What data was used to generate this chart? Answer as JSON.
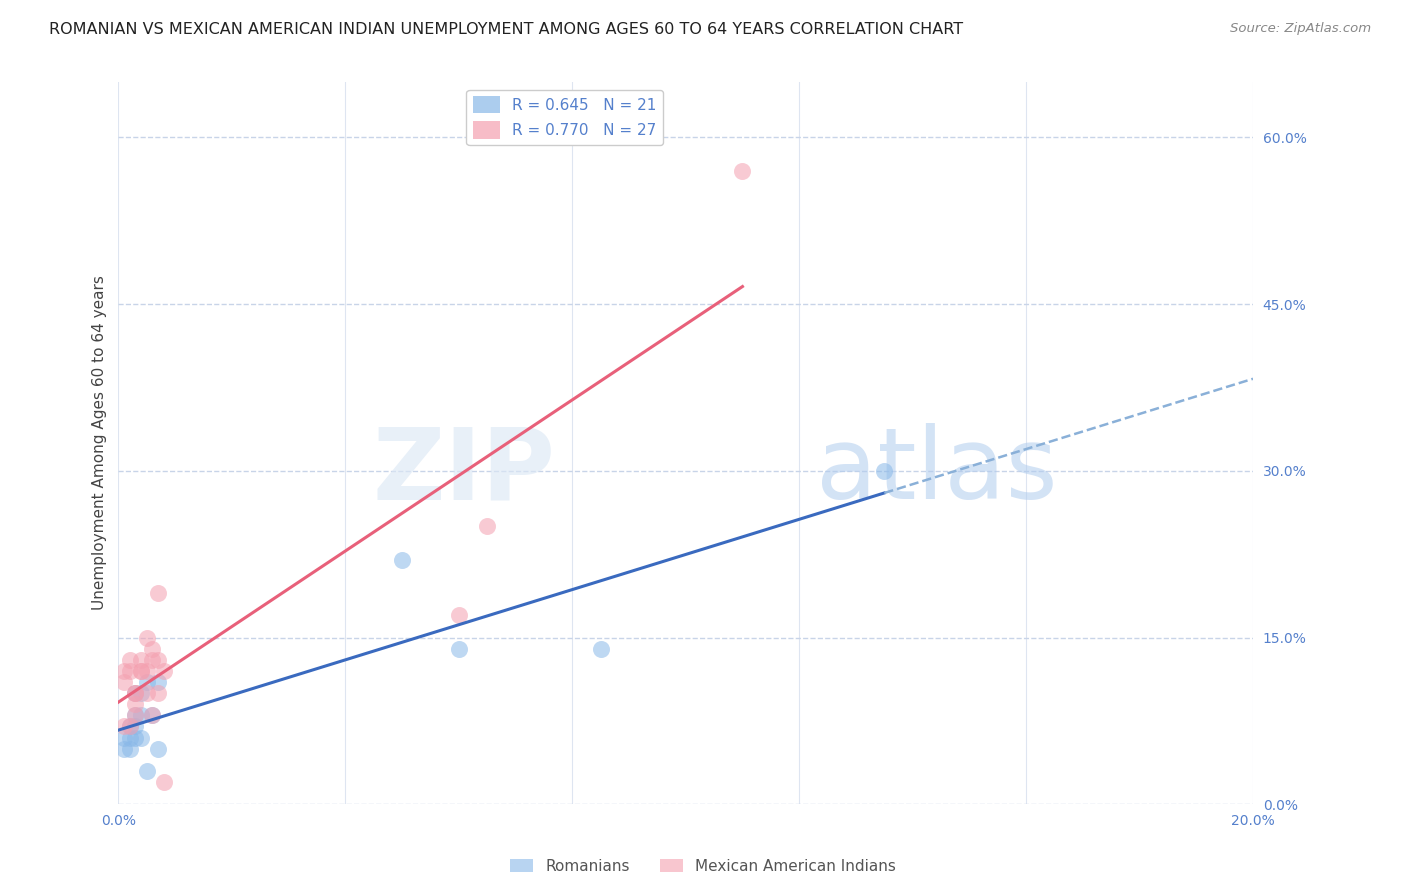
{
  "title": "ROMANIAN VS MEXICAN AMERICAN INDIAN UNEMPLOYMENT AMONG AGES 60 TO 64 YEARS CORRELATION CHART",
  "source": "Source: ZipAtlas.com",
  "ylabel": "Unemployment Among Ages 60 to 64 years",
  "R_romanian": 0.645,
  "N_romanian": 21,
  "R_mexican": 0.77,
  "N_mexican": 27,
  "romanian_x": [
    0.001,
    0.001,
    0.002,
    0.002,
    0.002,
    0.003,
    0.003,
    0.003,
    0.003,
    0.004,
    0.004,
    0.004,
    0.005,
    0.005,
    0.006,
    0.007,
    0.007,
    0.05,
    0.06,
    0.085,
    0.135
  ],
  "romanian_y": [
    0.05,
    0.06,
    0.05,
    0.06,
    0.07,
    0.06,
    0.08,
    0.07,
    0.1,
    0.08,
    0.1,
    0.06,
    0.11,
    0.03,
    0.08,
    0.11,
    0.05,
    0.22,
    0.14,
    0.14,
    0.3
  ],
  "mexican_x": [
    0.001,
    0.001,
    0.001,
    0.002,
    0.002,
    0.002,
    0.003,
    0.003,
    0.003,
    0.003,
    0.004,
    0.004,
    0.004,
    0.005,
    0.005,
    0.005,
    0.006,
    0.006,
    0.006,
    0.007,
    0.007,
    0.007,
    0.008,
    0.008,
    0.06,
    0.065,
    0.11
  ],
  "mexican_y": [
    0.07,
    0.11,
    0.12,
    0.12,
    0.13,
    0.07,
    0.08,
    0.1,
    0.1,
    0.09,
    0.13,
    0.12,
    0.12,
    0.15,
    0.12,
    0.1,
    0.14,
    0.13,
    0.08,
    0.13,
    0.1,
    0.19,
    0.12,
    0.02,
    0.17,
    0.25,
    0.57
  ],
  "blue_color": "#89b8e8",
  "pink_color": "#f4a0b0",
  "blue_line_color": "#3a6abf",
  "pink_line_color": "#e8607a",
  "blue_dashed_color": "#8ab0d8",
  "xlim": [
    0.0,
    0.2
  ],
  "ylim": [
    0.0,
    0.65
  ],
  "yticks": [
    0.0,
    0.15,
    0.3,
    0.45,
    0.6
  ],
  "ytick_labels": [
    "0.0%",
    "15.0%",
    "30.0%",
    "45.0%",
    "60.0%"
  ],
  "xticks": [
    0.0,
    0.04,
    0.08,
    0.12,
    0.16,
    0.2
  ],
  "xtick_labels_show": [
    "0.0%",
    "20.0%"
  ],
  "watermark_zip": "ZIP",
  "watermark_atlas": "atlas",
  "background_color": "#ffffff",
  "grid_color": "#c8d4e8",
  "title_fontsize": 11.5,
  "axis_label_fontsize": 11,
  "tick_fontsize": 10,
  "legend_fontsize": 11,
  "tick_color": "#5580cc",
  "label_color": "#444444"
}
